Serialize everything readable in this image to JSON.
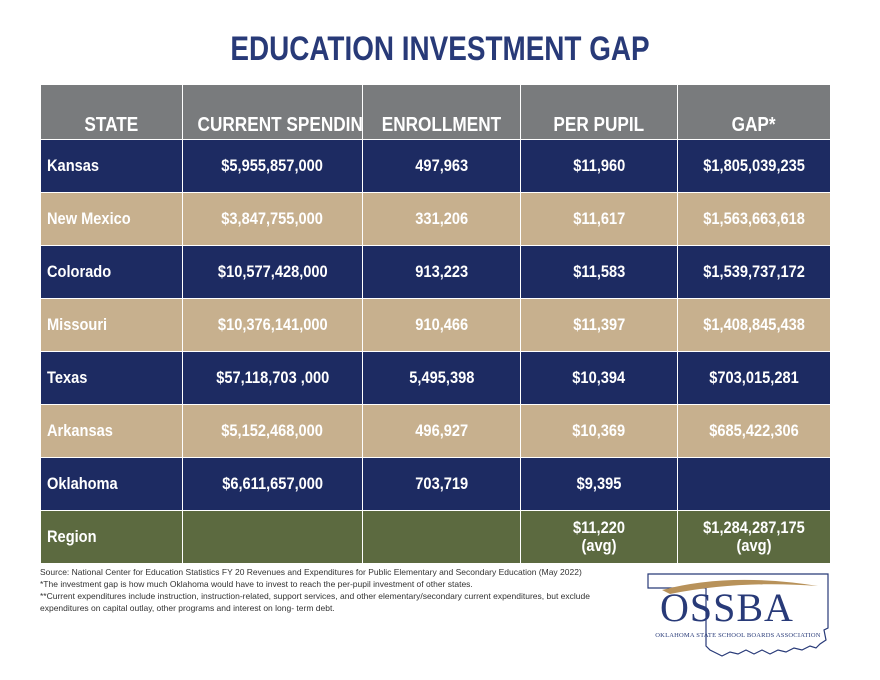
{
  "title": "EDUCATION INVESTMENT GAP",
  "table": {
    "headers": [
      "STATE",
      "CURRENT SPENDING",
      "ENROLLMENT",
      "PER PUPIL",
      "GAP*"
    ],
    "rows": [
      {
        "state": "Kansas",
        "spending": "$5,955,857,000",
        "enrollment": "497,963",
        "per_pupil": "$11,960",
        "gap": "$1,805,039,235",
        "style": "navy"
      },
      {
        "state": "New Mexico",
        "spending": "$3,847,755,000",
        "enrollment": "331,206",
        "per_pupil": "$11,617",
        "gap": "$1,563,663,618",
        "style": "tan"
      },
      {
        "state": "Colorado",
        "spending": "$10,577,428,000",
        "enrollment": "913,223",
        "per_pupil": "$11,583",
        "gap": "$1,539,737,172",
        "style": "navy"
      },
      {
        "state": "Missouri",
        "spending": "$10,376,141,000",
        "enrollment": "910,466",
        "per_pupil": "$11,397",
        "gap": "$1,408,845,438",
        "style": "tan"
      },
      {
        "state": "Texas",
        "spending": "$57,118,703 ,000",
        "enrollment": "5,495,398",
        "per_pupil": "$10,394",
        "gap": "$703,015,281",
        "style": "navy"
      },
      {
        "state": "Arkansas",
        "spending": "$5,152,468,000",
        "enrollment": "496,927",
        "per_pupil": "$10,369",
        "gap": "$685,422,306",
        "style": "tan"
      },
      {
        "state": "Oklahoma",
        "spending": "$6,611,657,000",
        "enrollment": "703,719",
        "per_pupil": "$9,395",
        "gap": "",
        "style": "navy"
      }
    ],
    "region": {
      "state": "Region",
      "spending": "",
      "enrollment": "",
      "per_pupil": "$11,220",
      "per_pupil_note": "(avg)",
      "gap": "$1,284,287,175",
      "gap_note": "(avg)"
    }
  },
  "notes": {
    "source": "Source: National Center for Education Statistics FY 20 Revenues and Expenditures for Public Elementary and Secondary Education (May 2022)",
    "gap_note": "*The investment gap is how much Oklahoma would have to invest to reach the per-pupil investment of other states.",
    "expenditure_note": "**Current expenditures include instruction, instruction-related, support services, and other elementary/secondary current expenditures, but exclude expenditures on capital outlay, other programs and interest on long- term debt."
  },
  "logo": {
    "name": "OSSBA",
    "subtitle": "OKLAHOMA STATE SCHOOL BOARDS ASSOCIATION"
  },
  "colors": {
    "title": "#283a78",
    "header_bg": "#797b7d",
    "navy_row": "#1d2b62",
    "tan_row": "#c7b08e",
    "region_row": "#5c6a40",
    "logo_swoosh": "#b8925a"
  }
}
